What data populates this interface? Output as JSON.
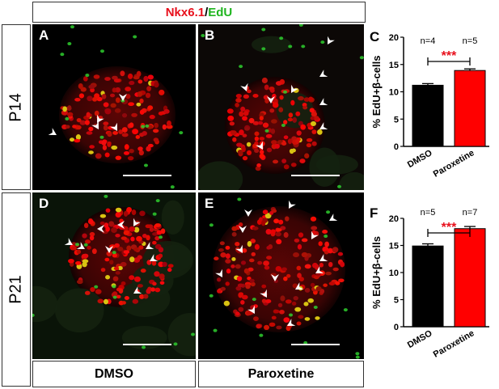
{
  "figure": {
    "marker_a": "Nkx6.1",
    "separator": "/",
    "marker_b": "EdU",
    "rows": [
      "P14",
      "P21"
    ],
    "columns": [
      "DMSO",
      "Paroxetine"
    ],
    "panel_labels": [
      "A",
      "B",
      "D",
      "E"
    ],
    "colors": {
      "nkx": "#e8101c",
      "edu": "#1fb51f",
      "dmso_bar": "#000000",
      "paroxetine_bar": "#ff0000",
      "significance": "#e8101c"
    }
  },
  "chart_data": [
    {
      "panel": "C",
      "type": "bar",
      "categories": [
        "DMSO",
        "Paroxetine"
      ],
      "values": [
        11.2,
        13.9
      ],
      "errors": [
        0.3,
        0.3
      ],
      "n_labels": [
        "n=4",
        "n=5"
      ],
      "significance": "***",
      "ylabel": "% EdU+β-cells",
      "ylim": [
        0,
        20
      ],
      "yticks": [
        0,
        5,
        10,
        15,
        20
      ],
      "bar_colors": [
        "#000000",
        "#ff0000"
      ]
    },
    {
      "panel": "F",
      "type": "bar",
      "categories": [
        "DMSO",
        "Paroxetine"
      ],
      "values": [
        14.9,
        18.1
      ],
      "errors": [
        0.4,
        0.4
      ],
      "n_labels": [
        "n=5",
        "n=7"
      ],
      "significance": "***",
      "ylabel": "% EdU+β-cells",
      "ylim": [
        0,
        20
      ],
      "yticks": [
        0,
        5,
        10,
        15,
        20
      ],
      "bar_colors": [
        "#000000",
        "#ff0000"
      ]
    }
  ]
}
